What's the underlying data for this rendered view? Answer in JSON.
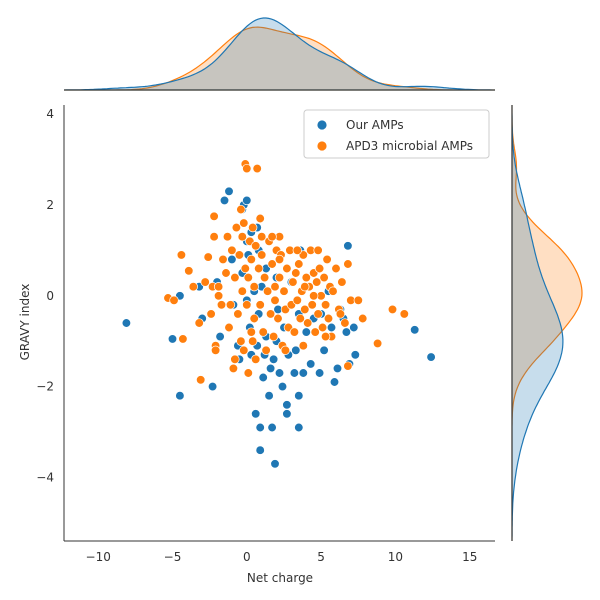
{
  "chart_data": {
    "type": "scatter",
    "xlabel": "Net charge",
    "ylabel": "GRAVY index",
    "xlim": [
      -12.3,
      16.7
    ],
    "ylim": [
      -5.4,
      4.2
    ],
    "x_ticks": [
      -10,
      -5,
      0,
      5,
      10,
      15
    ],
    "y_ticks": [
      -4,
      -2,
      0,
      2,
      4
    ],
    "x_tick_labels": [
      "−10",
      "−5",
      "0",
      "5",
      "10",
      "15"
    ],
    "y_tick_labels": [
      "−4",
      "−2",
      "0",
      "2",
      "4"
    ],
    "grid": false,
    "legend_position": "top-right",
    "marginals": "kde",
    "series": [
      {
        "name": "Our AMPs",
        "color": "#1f77b4",
        "points": [
          [
            -8.1,
            -0.6
          ],
          [
            -5.0,
            -0.95
          ],
          [
            -4.5,
            -2.2
          ],
          [
            -4.5,
            0.0
          ],
          [
            -3.2,
            0.2
          ],
          [
            -3.0,
            -0.5
          ],
          [
            -2.3,
            -2.0
          ],
          [
            -2.0,
            0.3
          ],
          [
            -1.8,
            -0.9
          ],
          [
            -1.5,
            2.1
          ],
          [
            -1.2,
            2.3
          ],
          [
            -1.0,
            0.8
          ],
          [
            -0.9,
            -0.2
          ],
          [
            -0.6,
            -1.1
          ],
          [
            -0.5,
            -1.4
          ],
          [
            -0.3,
            0.5
          ],
          [
            -0.3,
            1.9
          ],
          [
            -0.2,
            2.0
          ],
          [
            0.0,
            2.1
          ],
          [
            0.0,
            1.2
          ],
          [
            0.0,
            -0.1
          ],
          [
            0.1,
            0.9
          ],
          [
            0.2,
            -0.7
          ],
          [
            0.3,
            1.4
          ],
          [
            0.3,
            -1.3
          ],
          [
            0.5,
            0.1
          ],
          [
            0.6,
            -2.6
          ],
          [
            0.7,
            -1.1
          ],
          [
            0.7,
            1.5
          ],
          [
            0.8,
            1.0
          ],
          [
            0.8,
            -0.4
          ],
          [
            0.9,
            -3.4
          ],
          [
            0.9,
            -2.9
          ],
          [
            1.0,
            0.2
          ],
          [
            1.1,
            -1.8
          ],
          [
            1.2,
            -1.3
          ],
          [
            1.3,
            -0.9
          ],
          [
            1.3,
            0.6
          ],
          [
            1.5,
            -2.2
          ],
          [
            1.5,
            1.2
          ],
          [
            1.6,
            -1.6
          ],
          [
            1.7,
            -2.9
          ],
          [
            1.8,
            -1.4
          ],
          [
            1.9,
            -3.7
          ],
          [
            2.0,
            0.4
          ],
          [
            2.0,
            -1.0
          ],
          [
            2.1,
            -0.3
          ],
          [
            2.2,
            -1.7
          ],
          [
            2.4,
            -2.0
          ],
          [
            2.5,
            -0.7
          ],
          [
            2.7,
            -2.4
          ],
          [
            2.7,
            -2.6
          ],
          [
            2.8,
            -1.3
          ],
          [
            3.0,
            0.3
          ],
          [
            3.2,
            -1.7
          ],
          [
            3.3,
            -1.2
          ],
          [
            3.5,
            -2.9
          ],
          [
            3.5,
            -2.2
          ],
          [
            3.5,
            -0.4
          ],
          [
            3.6,
            1.0
          ],
          [
            3.8,
            -1.7
          ],
          [
            4.0,
            -0.8
          ],
          [
            4.3,
            -1.5
          ],
          [
            4.5,
            -0.5
          ],
          [
            4.9,
            -1.7
          ],
          [
            5.0,
            -0.4
          ],
          [
            5.2,
            -1.2
          ],
          [
            5.5,
            0.1
          ],
          [
            5.7,
            -0.7
          ],
          [
            5.9,
            -1.9
          ],
          [
            6.1,
            -1.6
          ],
          [
            6.3,
            -0.3
          ],
          [
            6.5,
            -0.5
          ],
          [
            6.7,
            -0.8
          ],
          [
            6.8,
            1.1
          ],
          [
            6.9,
            -1.5
          ],
          [
            7.2,
            -0.7
          ],
          [
            7.3,
            -1.3
          ],
          [
            11.3,
            -0.75
          ],
          [
            12.4,
            -1.35
          ]
        ]
      },
      {
        "name": "APD3 microbial AMPs",
        "color": "#ff7f0e",
        "points": [
          [
            -5.3,
            -0.05
          ],
          [
            -4.9,
            -0.1
          ],
          [
            -4.4,
            0.9
          ],
          [
            -4.3,
            -0.95
          ],
          [
            -3.9,
            0.55
          ],
          [
            -3.6,
            0.2
          ],
          [
            -3.2,
            -0.6
          ],
          [
            -3.1,
            -1.85
          ],
          [
            -2.8,
            0.3
          ],
          [
            -2.6,
            0.85
          ],
          [
            -2.4,
            -0.4
          ],
          [
            -2.3,
            0.2
          ],
          [
            -2.2,
            1.3
          ],
          [
            -2.2,
            1.75
          ],
          [
            -2.1,
            -1.1
          ],
          [
            -2.1,
            -1.2
          ],
          [
            -1.9,
            0.2
          ],
          [
            -1.7,
            -0.2
          ],
          [
            -1.6,
            0.8
          ],
          [
            -1.4,
            0.5
          ],
          [
            -1.3,
            1.3
          ],
          [
            -1.2,
            -0.7
          ],
          [
            -1.1,
            -0.2
          ],
          [
            -1.0,
            1.0
          ],
          [
            -0.9,
            -1.6
          ],
          [
            -0.8,
            0.4
          ],
          [
            -0.7,
            1.5
          ],
          [
            -0.6,
            -0.4
          ],
          [
            -0.5,
            0.9
          ],
          [
            -0.4,
            -1.0
          ],
          [
            -0.3,
            1.3
          ],
          [
            -0.3,
            0.1
          ],
          [
            -0.2,
            -1.2
          ],
          [
            -0.2,
            1.6
          ],
          [
            -0.1,
            0.6
          ],
          [
            -0.1,
            2.9
          ],
          [
            0.0,
            2.8
          ],
          [
            0.0,
            -0.2
          ],
          [
            0.1,
            0.4
          ],
          [
            0.1,
            -1.7
          ],
          [
            0.2,
            1.2
          ],
          [
            0.3,
            -0.8
          ],
          [
            0.3,
            0.8
          ],
          [
            0.4,
            1.5
          ],
          [
            0.5,
            0.2
          ],
          [
            0.5,
            -0.5
          ],
          [
            0.6,
            -1.4
          ],
          [
            0.6,
            1.1
          ],
          [
            0.7,
            2.8
          ],
          [
            0.8,
            0.6
          ],
          [
            0.9,
            -0.2
          ],
          [
            1.0,
            0.9
          ],
          [
            1.0,
            1.3
          ],
          [
            1.1,
            -0.8
          ],
          [
            1.2,
            0.4
          ],
          [
            1.3,
            -1.2
          ],
          [
            1.4,
            0.1
          ],
          [
            1.5,
            1.2
          ],
          [
            1.6,
            -0.4
          ],
          [
            1.7,
            0.7
          ],
          [
            1.8,
            -0.9
          ],
          [
            1.9,
            0.2
          ],
          [
            2.0,
            1.0
          ],
          [
            2.1,
            -0.5
          ],
          [
            2.2,
            0.4
          ],
          [
            2.3,
            0.9
          ],
          [
            2.4,
            -1.1
          ],
          [
            2.5,
            0.1
          ],
          [
            2.6,
            -0.3
          ],
          [
            2.7,
            0.6
          ],
          [
            2.8,
            -0.7
          ],
          [
            2.9,
            1.0
          ],
          [
            3.0,
            -0.2
          ],
          [
            3.1,
            0.3
          ],
          [
            3.2,
            -0.8
          ],
          [
            3.3,
            0.5
          ],
          [
            3.4,
            -0.1
          ],
          [
            3.5,
            0.7
          ],
          [
            3.6,
            -0.5
          ],
          [
            3.7,
            0.1
          ],
          [
            3.8,
            0.9
          ],
          [
            3.9,
            -0.3
          ],
          [
            4.0,
            0.4
          ],
          [
            4.1,
            -0.6
          ],
          [
            4.2,
            0.2
          ],
          [
            4.3,
            1.0
          ],
          [
            4.4,
            -0.2
          ],
          [
            4.5,
            0.5
          ],
          [
            4.6,
            -0.8
          ],
          [
            4.7,
            0.3
          ],
          [
            4.8,
            -0.4
          ],
          [
            4.9,
            0.6
          ],
          [
            5.0,
            0.0
          ],
          [
            5.1,
            -0.7
          ],
          [
            5.2,
            0.4
          ],
          [
            5.3,
            -0.2
          ],
          [
            5.4,
            0.8
          ],
          [
            5.5,
            -0.5
          ],
          [
            5.6,
            0.2
          ],
          [
            5.7,
            -0.9
          ],
          [
            5.8,
            0.1
          ],
          [
            6.0,
            0.6
          ],
          [
            6.2,
            -0.3
          ],
          [
            6.4,
            0.3
          ],
          [
            6.6,
            -0.6
          ],
          [
            6.8,
            0.7
          ],
          [
            7.0,
            -0.1
          ],
          [
            7.5,
            -0.1
          ],
          [
            7.8,
            -0.5
          ],
          [
            8.8,
            -1.05
          ],
          [
            9.8,
            -0.3
          ],
          [
            10.6,
            -0.4
          ],
          [
            6.8,
            -1.55
          ],
          [
            6.3,
            -0.4
          ],
          [
            2.2,
            1.3
          ],
          [
            3.4,
            1.0
          ],
          [
            4.8,
            1.0
          ],
          [
            -0.4,
            1.9
          ],
          [
            0.9,
            1.7
          ],
          [
            1.7,
            1.3
          ],
          [
            3.8,
            -1.1
          ],
          [
            -0.8,
            -1.4
          ],
          [
            0.4,
            -1.0
          ],
          [
            1.9,
            -0.1
          ],
          [
            3.9,
            0.2
          ],
          [
            5.3,
            -0.9
          ],
          [
            2.6,
            -1.2
          ],
          [
            -1.9,
            0.0
          ],
          [
            2.2,
            0.8
          ],
          [
            4.5,
            0.0
          ]
        ]
      }
    ]
  }
}
